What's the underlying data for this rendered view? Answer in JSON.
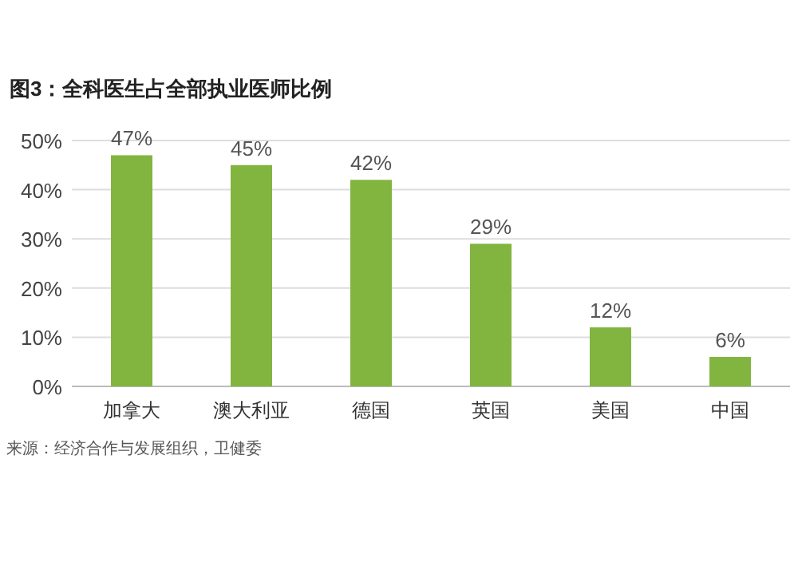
{
  "chart_data": {
    "type": "bar",
    "title": "图3：全科医生占全部执业医师比例",
    "categories": [
      "加拿大",
      "澳大利亚",
      "德国",
      "英国",
      "美国",
      "中国"
    ],
    "values": [
      47,
      45,
      42,
      29,
      12,
      6
    ],
    "value_labels": [
      "47%",
      "45%",
      "42%",
      "29%",
      "12%",
      "6%"
    ],
    "color": "#82b440",
    "ylim": [
      0,
      50
    ],
    "yticks": [
      {
        "value": 0,
        "label": "0%"
      },
      {
        "value": 10,
        "label": "10%"
      },
      {
        "value": 20,
        "label": "20%"
      },
      {
        "value": 30,
        "label": "30%"
      },
      {
        "value": 40,
        "label": "40%"
      },
      {
        "value": 50,
        "label": "50%"
      }
    ],
    "grid": "y",
    "annotations": [
      "来源：经济合作与发展组织，卫健委"
    ]
  }
}
